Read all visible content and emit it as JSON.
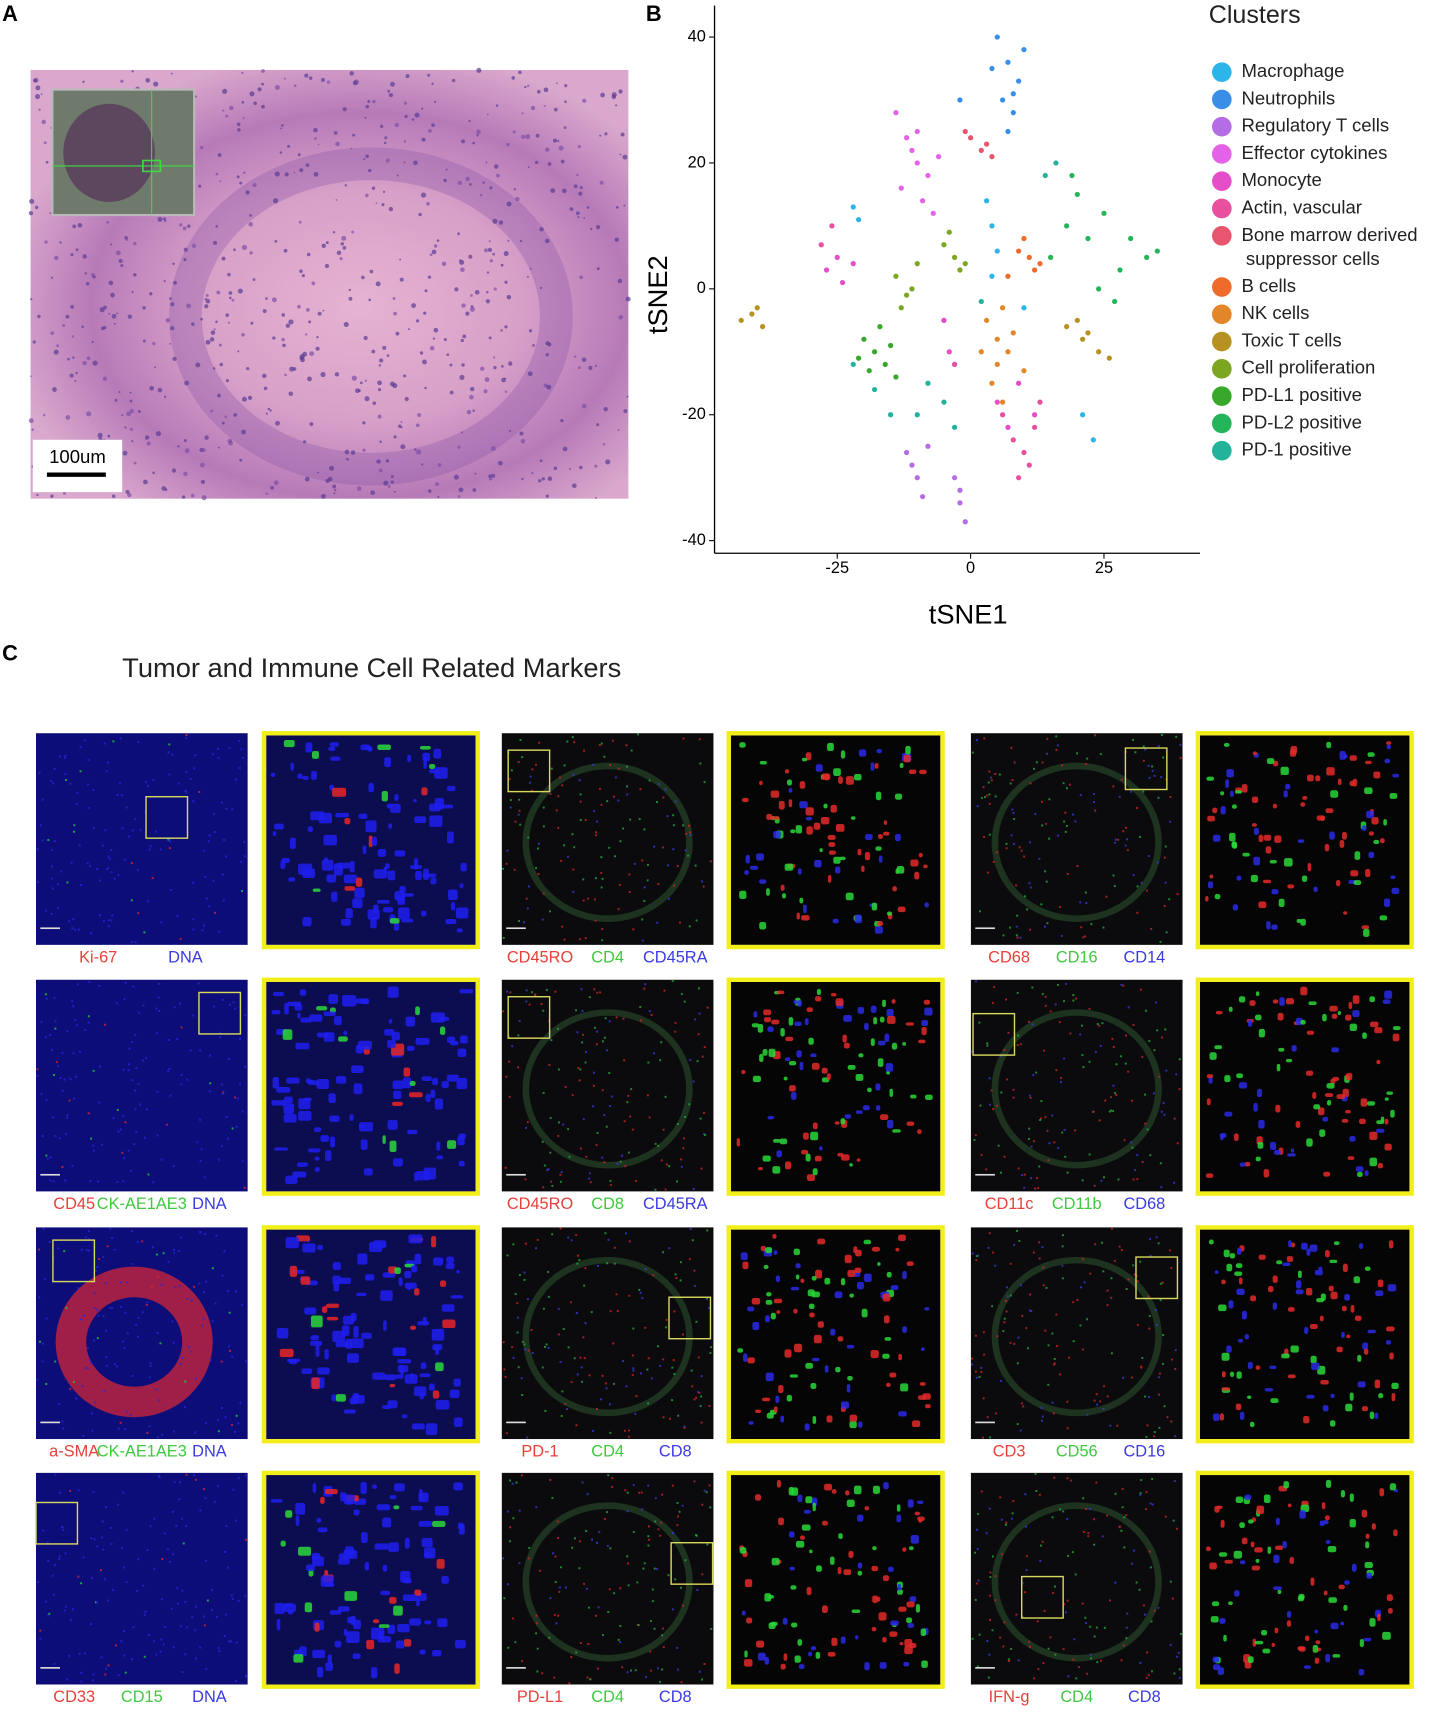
{
  "panel_labels": [
    "A",
    "B",
    "C"
  ],
  "panel_a": {
    "scale_bar": "100um"
  },
  "chart_data": {
    "type": "scatter",
    "xlabel": "tSNE1",
    "ylabel": "tSNE2",
    "legend_title": "Clusters",
    "legend": "right",
    "xlim": [
      -48,
      43
    ],
    "ylim": [
      -42,
      45
    ],
    "xticks": [
      -25,
      0,
      25
    ],
    "yticks": [
      -40,
      -20,
      0,
      20,
      40
    ],
    "grid": false,
    "series": [
      {
        "name": "Macrophage",
        "color": "#2bb5e8",
        "x": [
          3,
          4,
          5,
          4,
          -22,
          -21,
          21,
          23,
          10,
          -3
        ],
        "y": [
          14,
          10,
          6,
          2,
          13,
          11,
          -20,
          -24,
          -3,
          -12
        ]
      },
      {
        "name": "Neutrophils",
        "color": "#3b8ee8",
        "x": [
          5,
          7,
          9,
          6,
          8,
          4,
          10,
          7,
          -2,
          8
        ],
        "y": [
          40,
          36,
          33,
          30,
          28,
          35,
          38,
          25,
          30,
          31
        ]
      },
      {
        "name": "Regulatory T cells",
        "color": "#b56de6",
        "x": [
          -12,
          -10,
          -9,
          -11,
          -3,
          -2,
          -1,
          -2,
          -8,
          -5
        ],
        "y": [
          -26,
          -30,
          -33,
          -28,
          -30,
          -34,
          -37,
          -32,
          -25,
          -5
        ]
      },
      {
        "name": "Effector cytokines",
        "color": "#e362e8",
        "x": [
          -14,
          -12,
          -10,
          -8,
          -9,
          -11,
          -7,
          -13,
          -10,
          -6
        ],
        "y": [
          28,
          24,
          20,
          18,
          14,
          22,
          12,
          16,
          25,
          21
        ]
      },
      {
        "name": "Monocyte",
        "color": "#e64dc8",
        "x": [
          -27,
          -25,
          -24,
          -22,
          5,
          7,
          9,
          -5,
          -4,
          12
        ],
        "y": [
          3,
          5,
          1,
          4,
          -18,
          -22,
          -15,
          -5,
          -10,
          -20
        ]
      },
      {
        "name": "Actin, vascular",
        "color": "#e8509e",
        "x": [
          8,
          10,
          12,
          11,
          6,
          13,
          9,
          -3,
          -28,
          -26
        ],
        "y": [
          -24,
          -26,
          -22,
          -28,
          -20,
          -18,
          -30,
          -12,
          7,
          10
        ]
      },
      {
        "name": "Bone marrow derived suppressor cells",
        "color": "#e8566e",
        "x": [
          2,
          3,
          4,
          -1,
          0
        ],
        "y": [
          22,
          23,
          21,
          25,
          24
        ]
      },
      {
        "name": "B cells",
        "color": "#ee6b2c",
        "x": [
          9,
          11,
          12,
          10,
          13,
          7
        ],
        "y": [
          6,
          5,
          3,
          8,
          4,
          2
        ]
      },
      {
        "name": "NK cells",
        "color": "#e3862a",
        "x": [
          3,
          5,
          7,
          5,
          4,
          6,
          8,
          2,
          6,
          10
        ],
        "y": [
          -5,
          -8,
          -10,
          -12,
          -15,
          -18,
          -7,
          -10,
          -3,
          -13
        ]
      },
      {
        "name": "Toxic T cells",
        "color": "#b69223",
        "x": [
          -43,
          -41,
          -39,
          -40,
          18,
          21,
          24,
          26,
          22,
          20
        ],
        "y": [
          -5,
          -4,
          -6,
          -3,
          -6,
          -8,
          -10,
          -11,
          -7,
          -5
        ]
      },
      {
        "name": "Cell proliferation",
        "color": "#7ba622",
        "x": [
          -14,
          -12,
          -10,
          -13,
          -5,
          -3,
          -2,
          -4,
          -11,
          -1
        ],
        "y": [
          2,
          -1,
          4,
          -3,
          7,
          5,
          3,
          9,
          0,
          4
        ]
      },
      {
        "name": "PD-L1 positive",
        "color": "#37a82a",
        "x": [
          -20,
          -18,
          -16,
          -14,
          -17,
          -19,
          -15,
          -21
        ],
        "y": [
          -8,
          -10,
          -12,
          -14,
          -6,
          -13,
          -9,
          -11
        ]
      },
      {
        "name": "PD-L2 positive",
        "color": "#24b55a",
        "x": [
          15,
          18,
          22,
          25,
          28,
          30,
          33,
          20,
          24,
          27,
          35,
          19
        ],
        "y": [
          5,
          10,
          8,
          12,
          3,
          8,
          5,
          15,
          0,
          -2,
          6,
          18
        ]
      },
      {
        "name": "PD-1 positive",
        "color": "#22b39a",
        "x": [
          -22,
          -18,
          -15,
          -8,
          -5,
          -3,
          -10,
          14,
          16,
          2
        ],
        "y": [
          -12,
          -16,
          -20,
          -15,
          -18,
          -22,
          -20,
          18,
          20,
          -2
        ]
      }
    ]
  },
  "panel_c": {
    "title": "Tumor and Immune Cell Related Markers",
    "images": [
      {
        "markers": [
          {
            "text": "Ki-67",
            "color": "#e8403a"
          },
          {
            "text": "DNA",
            "color": "#3a3ae0"
          }
        ]
      },
      {
        "markers": [
          {
            "text": "CD45RO",
            "color": "#e8403a"
          },
          {
            "text": "CD4",
            "color": "#3ec93e"
          },
          {
            "text": "CD45RA",
            "color": "#3a3ae0"
          }
        ]
      },
      {
        "markers": [
          {
            "text": "CD68",
            "color": "#e8403a"
          },
          {
            "text": "CD16",
            "color": "#3ec93e"
          },
          {
            "text": "CD14",
            "color": "#3a3ae0"
          }
        ]
      },
      {
        "markers": [
          {
            "text": "CD45",
            "color": "#e8403a"
          },
          {
            "text": "CK-AE1AE3",
            "color": "#3ec93e"
          },
          {
            "text": "DNA",
            "color": "#3a3ae0"
          }
        ]
      },
      {
        "markers": [
          {
            "text": "CD45RO",
            "color": "#e8403a"
          },
          {
            "text": "CD8",
            "color": "#3ec93e"
          },
          {
            "text": "CD45RA",
            "color": "#3a3ae0"
          }
        ]
      },
      {
        "markers": [
          {
            "text": "CD11c",
            "color": "#e8403a"
          },
          {
            "text": "CD11b",
            "color": "#3ec93e"
          },
          {
            "text": "CD68",
            "color": "#3a3ae0"
          }
        ]
      },
      {
        "markers": [
          {
            "text": "a-SMA",
            "color": "#e8403a"
          },
          {
            "text": "CK-AE1AE3",
            "color": "#3ec93e"
          },
          {
            "text": "DNA",
            "color": "#3a3ae0"
          }
        ]
      },
      {
        "markers": [
          {
            "text": "PD-1",
            "color": "#e8403a"
          },
          {
            "text": "CD4",
            "color": "#3ec93e"
          },
          {
            "text": "CD8",
            "color": "#3a3ae0"
          }
        ]
      },
      {
        "markers": [
          {
            "text": "CD3",
            "color": "#e8403a"
          },
          {
            "text": "CD56",
            "color": "#3ec93e"
          },
          {
            "text": "CD16",
            "color": "#3a3ae0"
          }
        ]
      },
      {
        "markers": [
          {
            "text": "CD33",
            "color": "#e8403a"
          },
          {
            "text": "CD15",
            "color": "#3ec93e"
          },
          {
            "text": "DNA",
            "color": "#3a3ae0"
          }
        ]
      },
      {
        "markers": [
          {
            "text": "PD-L1",
            "color": "#e8403a"
          },
          {
            "text": "CD4",
            "color": "#3ec93e"
          },
          {
            "text": "CD8",
            "color": "#3a3ae0"
          }
        ]
      },
      {
        "markers": [
          {
            "text": "IFN-g",
            "color": "#e8403a"
          },
          {
            "text": "CD4",
            "color": "#3ec93e"
          },
          {
            "text": "CD8",
            "color": "#3a3ae0"
          }
        ]
      }
    ]
  }
}
